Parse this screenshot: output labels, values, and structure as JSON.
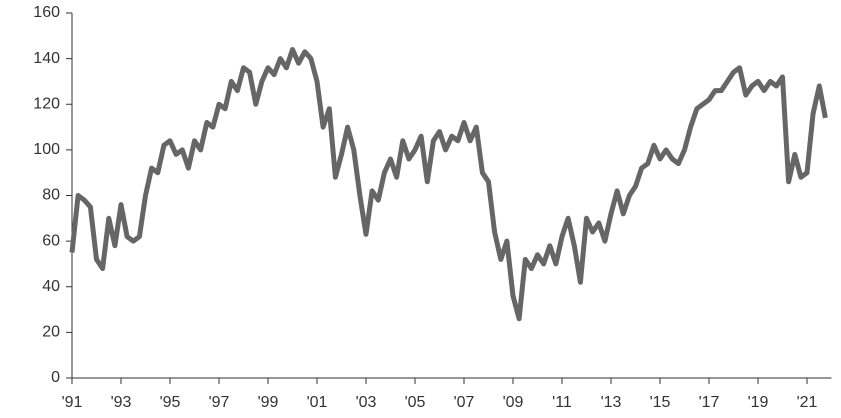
{
  "chart_data": {
    "type": "line",
    "x": [
      1991,
      1991.25,
      1991.5,
      1991.75,
      1992,
      1992.25,
      1992.5,
      1992.75,
      1993,
      1993.25,
      1993.5,
      1993.75,
      1994,
      1994.25,
      1994.5,
      1994.75,
      1995,
      1995.25,
      1995.5,
      1995.75,
      1996,
      1996.25,
      1996.5,
      1996.75,
      1997,
      1997.25,
      1997.5,
      1997.75,
      1998,
      1998.25,
      1998.5,
      1998.75,
      1999,
      1999.25,
      1999.5,
      1999.75,
      2000,
      2000.25,
      2000.5,
      2000.75,
      2001,
      2001.25,
      2001.5,
      2001.75,
      2002,
      2002.25,
      2002.5,
      2002.75,
      2003,
      2003.25,
      2003.5,
      2003.75,
      2004,
      2004.25,
      2004.5,
      2004.75,
      2005,
      2005.25,
      2005.5,
      2005.75,
      2006,
      2006.25,
      2006.5,
      2006.75,
      2007,
      2007.25,
      2007.5,
      2007.75,
      2008,
      2008.25,
      2008.5,
      2008.75,
      2009,
      2009.25,
      2009.5,
      2009.75,
      2010,
      2010.25,
      2010.5,
      2010.75,
      2011,
      2011.25,
      2011.5,
      2011.75,
      2012,
      2012.25,
      2012.5,
      2012.75,
      2013,
      2013.25,
      2013.5,
      2013.75,
      2014,
      2014.25,
      2014.5,
      2014.75,
      2015,
      2015.25,
      2015.5,
      2015.75,
      2016,
      2016.25,
      2016.5,
      2016.75,
      2017,
      2017.25,
      2017.5,
      2017.75,
      2018,
      2018.25,
      2018.5,
      2018.75,
      2019,
      2019.25,
      2019.5,
      2019.75,
      2020,
      2020.25,
      2020.5,
      2020.75,
      2021,
      2021.25,
      2021.5,
      2021.75
    ],
    "series": [
      {
        "color": "#666666",
        "values": [
          55,
          80,
          78,
          75,
          52,
          48,
          70,
          58,
          76,
          62,
          60,
          62,
          80,
          92,
          90,
          102,
          104,
          98,
          100,
          92,
          104,
          100,
          112,
          110,
          120,
          118,
          130,
          126,
          136,
          134,
          120,
          130,
          136,
          133,
          140,
          136,
          144,
          138,
          143,
          140,
          130,
          110,
          118,
          88,
          98,
          110,
          100,
          80,
          63,
          82,
          78,
          90,
          96,
          88,
          104,
          96,
          100,
          106,
          86,
          104,
          108,
          100,
          106,
          104,
          112,
          104,
          110,
          90,
          86,
          64,
          52,
          60,
          36,
          26,
          52,
          48,
          54,
          50,
          58,
          50,
          62,
          70,
          58,
          42,
          70,
          64,
          68,
          60,
          72,
          82,
          72,
          80,
          84,
          92,
          94,
          102,
          96,
          100,
          96,
          94,
          100,
          110,
          118,
          120,
          122,
          126,
          126,
          130,
          134,
          136,
          124,
          128,
          130,
          126,
          130,
          128,
          132,
          86,
          98,
          88,
          90,
          116,
          128,
          114
        ]
      }
    ],
    "xlim": [
      1991,
      2022
    ],
    "xticks": [
      {
        "value": 1991,
        "label": "'91"
      },
      {
        "value": 1993,
        "label": "'93"
      },
      {
        "value": 1995,
        "label": "'95"
      },
      {
        "value": 1997,
        "label": "'97"
      },
      {
        "value": 1999,
        "label": "'99"
      },
      {
        "value": 2001,
        "label": "'01"
      },
      {
        "value": 2003,
        "label": "'03"
      },
      {
        "value": 2005,
        "label": "'05"
      },
      {
        "value": 2007,
        "label": "'07"
      },
      {
        "value": 2009,
        "label": "'09"
      },
      {
        "value": 2011,
        "label": "'11"
      },
      {
        "value": 2013,
        "label": "'13"
      },
      {
        "value": 2015,
        "label": "'15"
      },
      {
        "value": 2017,
        "label": "'17"
      },
      {
        "value": 2019,
        "label": "'19"
      },
      {
        "value": 2021,
        "label": "'21"
      }
    ],
    "ylim": [
      0,
      160
    ],
    "yticks": [
      0,
      20,
      40,
      60,
      80,
      100,
      120,
      140,
      160
    ]
  }
}
